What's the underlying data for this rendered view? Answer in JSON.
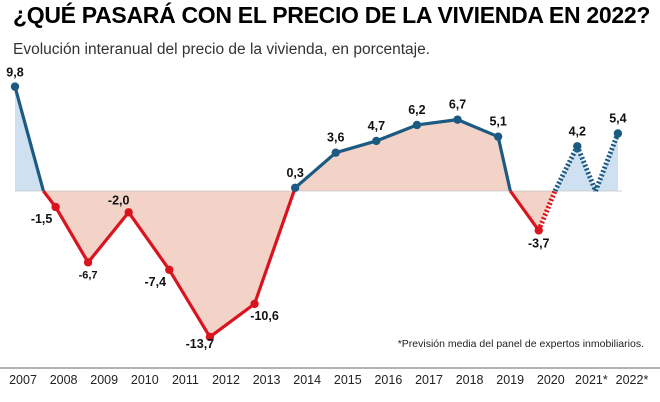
{
  "title": "¿QUÉ PASARÁ CON EL PRECIO DE LA VIVIENDA EN 2022?",
  "subtitle": "Evolución interanual del precio de la vivienda, en porcentaje.",
  "footnote": "*Previsión media del panel de expertos inmobiliarios.",
  "colors": {
    "positive": "#1b5a82",
    "negative": "#d9141f",
    "positive_fill": "#cfe0f1",
    "negative_fill": "#f3d3c8",
    "axis": "#666666"
  },
  "chart_data": {
    "type": "line",
    "title": "¿QUÉ PASARÁ CON EL PRECIO DE LA VIVIENDA EN 2022?",
    "subtitle": "Evolución interanual del precio de la vivienda, en porcentaje.",
    "xlabel": "",
    "ylabel": "",
    "categories": [
      "2007",
      "2008",
      "2009",
      "2010",
      "2011",
      "2012",
      "2013",
      "2014",
      "2015",
      "2016",
      "2017",
      "2018",
      "2019",
      "2020",
      "2021*",
      "2022*"
    ],
    "ylim": [
      -14,
      10
    ],
    "grid": false,
    "legend": "none",
    "points": [
      {
        "x": 2007.0,
        "y": 9.8,
        "label": "9,8",
        "forecast": false
      },
      {
        "x": 2007.7,
        "y": 0,
        "label": "",
        "forecast": false
      },
      {
        "x": 2008.0,
        "y": -1.5,
        "label": "-1,5",
        "forecast": false
      },
      {
        "x": 2008.8,
        "y": -6.7,
        "label": "-6,7",
        "forecast": false
      },
      {
        "x": 2009.8,
        "y": -2.0,
        "label": "-2,0",
        "forecast": false
      },
      {
        "x": 2010.8,
        "y": -7.4,
        "label": "-7,4",
        "forecast": false
      },
      {
        "x": 2011.8,
        "y": -13.7,
        "label": "-13,7",
        "forecast": false
      },
      {
        "x": 2012.9,
        "y": -10.6,
        "label": "-10,6",
        "forecast": false
      },
      {
        "x": 2013.9,
        "y": 0.3,
        "label": "0,3",
        "forecast": false
      },
      {
        "x": 2014.9,
        "y": 3.6,
        "label": "3,6",
        "forecast": false
      },
      {
        "x": 2015.9,
        "y": 4.7,
        "label": "4,7",
        "forecast": false
      },
      {
        "x": 2016.9,
        "y": 6.2,
        "label": "6,2",
        "forecast": false
      },
      {
        "x": 2017.9,
        "y": 6.7,
        "label": "6,7",
        "forecast": false
      },
      {
        "x": 2018.9,
        "y": 5.1,
        "label": "5,1",
        "forecast": false
      },
      {
        "x": 2019.2,
        "y": 0,
        "label": "",
        "forecast": false
      },
      {
        "x": 2019.9,
        "y": -3.7,
        "label": "-3,7",
        "forecast": false
      },
      {
        "x": 2020.3,
        "y": 0,
        "label": "",
        "forecast": true
      },
      {
        "x": 2020.85,
        "y": 4.2,
        "label": "4,2",
        "forecast": true
      },
      {
        "x": 2021.3,
        "y": 0,
        "label": "",
        "forecast": true
      },
      {
        "x": 2021.85,
        "y": 5.4,
        "label": "5,4",
        "forecast": true
      }
    ]
  }
}
